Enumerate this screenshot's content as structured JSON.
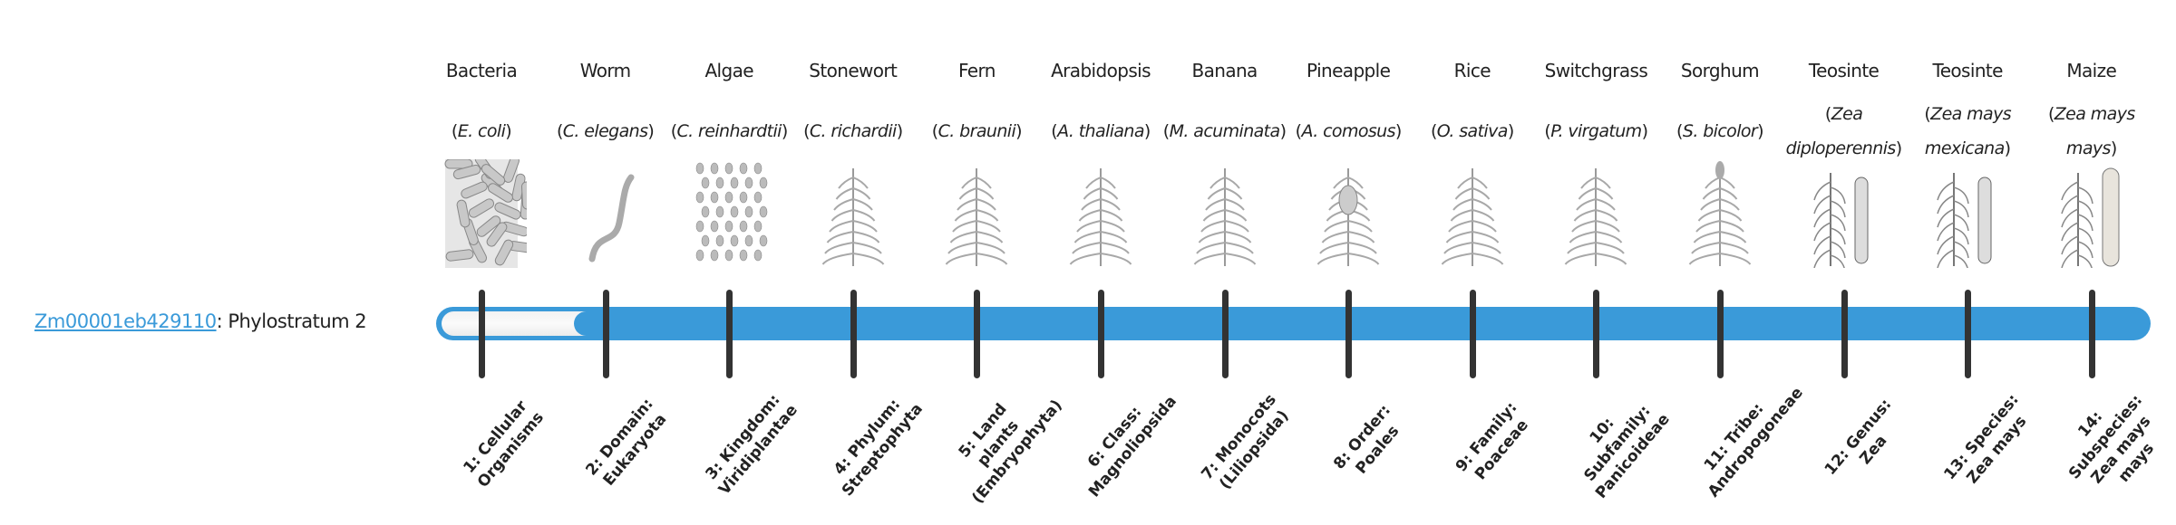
{
  "gene": {
    "id": "Zm00001eb429110",
    "separator": ": ",
    "phylostratum_text": "Phylostratum 2"
  },
  "phylostratum_value": 2,
  "colors": {
    "bar": "#3a9ad9",
    "tick": "#333333",
    "link": "#3a9ad9"
  },
  "organisms": [
    {
      "name": "Bacteria",
      "species": "E. coli",
      "icon": "bacteria-icon",
      "stratum": "1: Cellular Organisms"
    },
    {
      "name": "Worm",
      "species": "C. elegans",
      "icon": "worm-icon",
      "stratum": "2: Domain: Eukaryota"
    },
    {
      "name": "Algae",
      "species": "C. reinhardtii",
      "icon": "algae-icon",
      "stratum": "3: Kingdom: Viridiplantae"
    },
    {
      "name": "Stonewort",
      "species": "C. richardii",
      "icon": "stonewort-icon",
      "stratum": "4: Phylum: Streptophyta"
    },
    {
      "name": "Fern",
      "species": "C. braunii",
      "icon": "fern-icon",
      "stratum": "5: Land plants (Embryophyta)"
    },
    {
      "name": "Arabidopsis",
      "species": "A. thaliana",
      "icon": "arabidopsis-icon",
      "stratum": "6: Class: Magnoliopsida"
    },
    {
      "name": "Banana",
      "species": "M. acuminata",
      "icon": "banana-icon",
      "stratum": "7: Monocots (Liliopsida)"
    },
    {
      "name": "Pineapple",
      "species": "A. comosus",
      "icon": "pineapple-icon",
      "stratum": "8: Order: Poales"
    },
    {
      "name": "Rice",
      "species": "O. sativa",
      "icon": "rice-icon",
      "stratum": "9: Family: Poaceae"
    },
    {
      "name": "Switchgrass",
      "species": "P. virgatum",
      "icon": "switchgrass-icon",
      "stratum": "10: Subfamily: Panicoideae"
    },
    {
      "name": "Sorghum",
      "species": "S. bicolor",
      "icon": "sorghum-icon",
      "stratum": "11: Tribe: Andropogoneae"
    },
    {
      "name": "Teosinte",
      "species": "Zea diploperennis",
      "icon": "teosinte-icon",
      "stratum": "12: Genus: Zea"
    },
    {
      "name": "Teosinte",
      "species": "Zea mays mexicana",
      "icon": "teosinte-icon",
      "stratum": "13: Species: Zea mays"
    },
    {
      "name": "Maize",
      "species": "Zea mays mays",
      "icon": "maize-icon",
      "stratum": "14: Subspecies: Zea mays mays"
    }
  ]
}
